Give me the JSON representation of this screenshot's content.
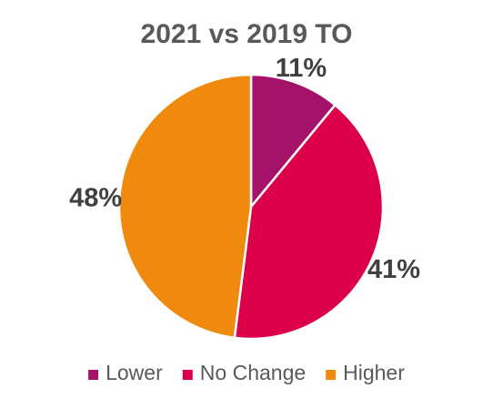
{
  "chart_data": {
    "type": "pie",
    "title": "2021 vs 2019 TO",
    "categories": [
      "Lower",
      "No Change",
      "Higher"
    ],
    "values": [
      11,
      41,
      48
    ],
    "data_labels": [
      "11%",
      "41%",
      "48%"
    ],
    "colors": [
      "#A5126A",
      "#DC004B",
      "#F08A0E"
    ],
    "legend_position": "bottom",
    "start_angle_deg": 0,
    "direction": "clockwise"
  }
}
